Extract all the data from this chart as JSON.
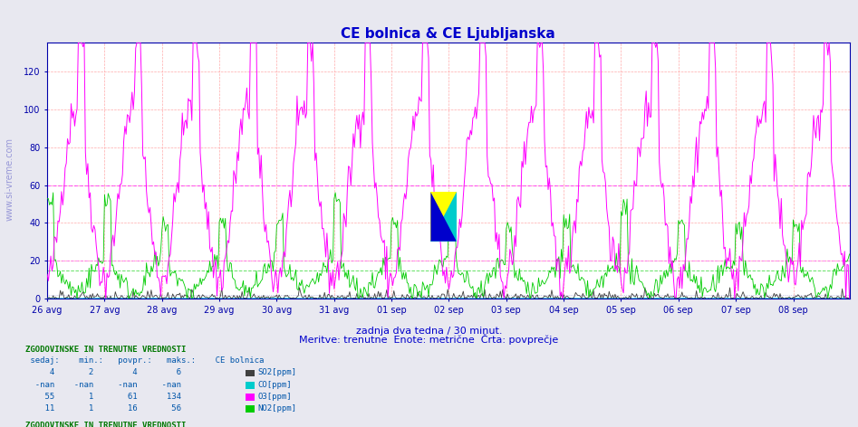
{
  "title": "CE bolnica & CE Ljubljanska",
  "title_color": "#0000cc",
  "bg_color": "#e8e8f0",
  "plot_bg_color": "#ffffff",
  "grid_color_major": "#ffaaaa",
  "ylim": [
    0,
    135
  ],
  "yticks": [
    0,
    20,
    40,
    60,
    80,
    100,
    120
  ],
  "hline_pink": 60,
  "hline_pink2": 20,
  "hline_green": 15,
  "n_points": 672,
  "date_labels": [
    "26 avg",
    "27 avg",
    "28 avg",
    "29 avg",
    "30 avg",
    "31 avg",
    "01 sep",
    "02 sep",
    "03 sep",
    "04 sep",
    "05 sep",
    "06 sep",
    "07 sep",
    "08 sep"
  ],
  "SO2_color": "#404040",
  "CO_color": "#00cccc",
  "O3_color": "#ff00ff",
  "NO2_color": "#00cc00",
  "axis_line_color": "#0000aa",
  "watermark_color": "#0000aa",
  "bottom_text1": "zadnja dva tedna / 30 minut.",
  "bottom_text2": "Meritve: trenutne  Enote: metrične  Črta: povprečje",
  "bottom_text_color": "#0000cc",
  "table_header_color": "#007700",
  "table_text_color": "#0055aa"
}
